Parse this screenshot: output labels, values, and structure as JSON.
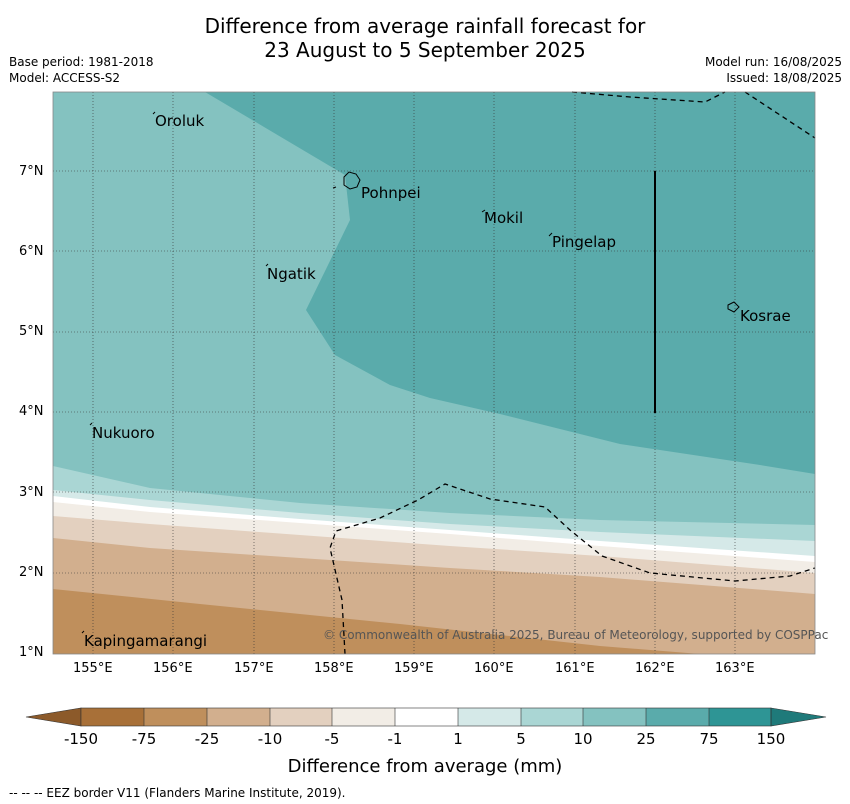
{
  "title": {
    "line1": "Difference from average rainfall forecast for",
    "line2": "23 August to 5 September 2025"
  },
  "meta": {
    "base_period": "Base period: 1981-2018",
    "model": "Model: ACCESS-S2",
    "model_run": "Model run: 16/08/2025",
    "issued": "Issued: 18/08/2025"
  },
  "map": {
    "lat_labels": [
      "1°N",
      "2°N",
      "3°N",
      "4°N",
      "5°N",
      "6°N",
      "7°N"
    ],
    "lon_labels": [
      "155°E",
      "156°E",
      "157°E",
      "158°E",
      "159°E",
      "160°E",
      "161°E",
      "162°E",
      "163°E"
    ],
    "places": [
      "Oroluk",
      "Pohnpei",
      "Mokil",
      "Pingelap",
      "Ngatik",
      "Kosrae",
      "Nukuoro",
      "Kapingamarangi"
    ],
    "copyright": "© Commonwealth of Australia 2025, Bureau of Meteorology, supported by COSPPac"
  },
  "colorbar": {
    "ticks": [
      "-150",
      "-75",
      "-25",
      "-10",
      "-5",
      "-1",
      "1",
      "5",
      "10",
      "25",
      "75",
      "150"
    ],
    "colors": [
      "#a87038",
      "#bf8f5c",
      "#d2af8e",
      "#e3d0bf",
      "#f2ede6",
      "#ffffff",
      "#d5e9e8",
      "#aad6d4",
      "#84c2c0",
      "#5aabab",
      "#2e9595"
    ],
    "extend_low_color": "#8c5a2a",
    "extend_high_color": "#1f7a7a",
    "title": "Difference from average (mm)"
  },
  "footer": {
    "eez": "--  --  -- EEZ border V11 (Flanders Marine Institute, 2019)."
  }
}
